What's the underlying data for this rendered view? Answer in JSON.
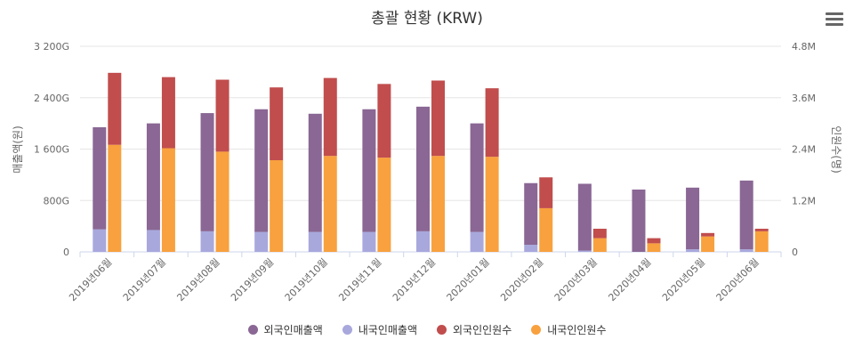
{
  "chart_data": {
    "type": "bar",
    "title": "총괄 현황 (KRW)",
    "categories": [
      "2019년06월",
      "2019년07월",
      "2019년08월",
      "2019년09월",
      "2019년10월",
      "2019년11월",
      "2019년12월",
      "2020년01월",
      "2020년02월",
      "2020년03월",
      "2020년04월",
      "2020년05월",
      "2020년06월"
    ],
    "y_left": {
      "label": "매출액(원)",
      "ticks": [
        "0",
        "800G",
        "1 600G",
        "2 400G",
        "3 200G"
      ],
      "tick_values": [
        0,
        800,
        1600,
        2400,
        3200
      ],
      "range": [
        0,
        3200
      ],
      "unit": "G"
    },
    "y_right": {
      "label": "인원수(명)",
      "ticks": [
        "0",
        "1.2M",
        "2.4M",
        "3.6M",
        "4.8M"
      ],
      "tick_values": [
        0,
        1.2,
        2.4,
        3.6,
        4.8
      ],
      "range": [
        0,
        4.8
      ],
      "unit": "M"
    },
    "series": [
      {
        "name": "외국인매출액",
        "axis": "left",
        "stack": "sales",
        "color": "#8a6794",
        "values": [
          1590,
          1660,
          1840,
          1910,
          1840,
          1910,
          1940,
          1690,
          960,
          1040,
          970,
          960,
          1070
        ]
      },
      {
        "name": "내국인매출액",
        "axis": "left",
        "stack": "sales",
        "color": "#a8a8dd",
        "values": [
          350,
          340,
          320,
          310,
          310,
          310,
          320,
          310,
          110,
          20,
          0,
          40,
          40
        ]
      },
      {
        "name": "외국인인원수",
        "axis": "right",
        "stack": "people",
        "color": "#c14d4d",
        "values": [
          1.68,
          1.66,
          1.68,
          1.7,
          1.82,
          1.72,
          1.76,
          1.6,
          0.72,
          0.22,
          0.12,
          0.08,
          0.06
        ]
      },
      {
        "name": "내국인인원수",
        "axis": "right",
        "stack": "people",
        "color": "#f8a13e",
        "values": [
          2.5,
          2.42,
          2.34,
          2.14,
          2.24,
          2.2,
          2.24,
          2.22,
          1.02,
          0.32,
          0.2,
          0.36,
          0.48
        ]
      }
    ],
    "grid": true,
    "legend_position": "bottom"
  }
}
